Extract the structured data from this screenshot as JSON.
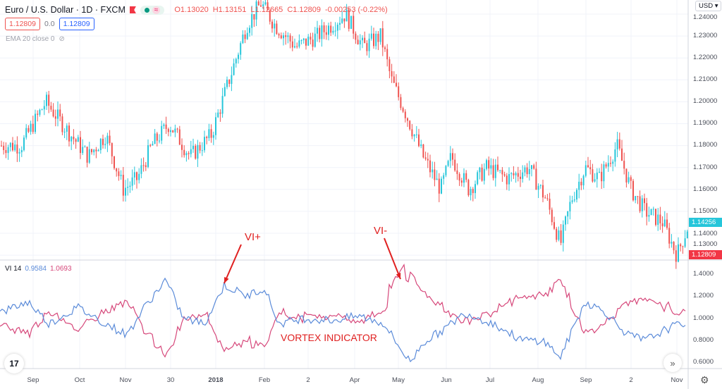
{
  "header": {
    "symbol": "Euro / U.S. Dollar · 1D · FXCM",
    "open": "O1.13020",
    "high": "H1.13151",
    "low": "L1.12665",
    "close": "C1.12809",
    "change": "-0.00253 (-0.22%)",
    "sell_price": "1.12809",
    "spread": "0.0",
    "buy_price": "1.12809",
    "wave_icon": "≈"
  },
  "ema": {
    "label": "EMA 20 close 0"
  },
  "vi": {
    "label": "VI 14",
    "plus": "0.9584",
    "minus": "1.0693"
  },
  "currency": "USD",
  "price_axis": [
    "1.24000",
    "1.23000",
    "1.22000",
    "1.21000",
    "1.20000",
    "1.19000",
    "1.18000",
    "1.17000",
    "1.16000",
    "1.15000",
    "1.14000",
    "1.13000"
  ],
  "last_price": "1.14256",
  "red_price": "1.12809",
  "vi_axis": [
    "1.4000",
    "1.2000",
    "1.0000",
    "0.8000",
    "0.6000"
  ],
  "time_axis": [
    "Sep",
    "Oct",
    "Nov",
    "30",
    "2018",
    "Feb",
    "2",
    "Apr",
    "May",
    "Jun",
    "Jul",
    "Aug",
    "Sep",
    "2",
    "Nov"
  ],
  "annotations": {
    "vi_plus": "VI+",
    "vi_minus": "VI-",
    "vortex": "VORTEX INDICATOR"
  },
  "colors": {
    "up": "#26c6da",
    "down": "#ef5350",
    "vi_plus": "#5b8bd9",
    "vi_minus": "#d6477a",
    "annotation": "#e02020"
  }
}
